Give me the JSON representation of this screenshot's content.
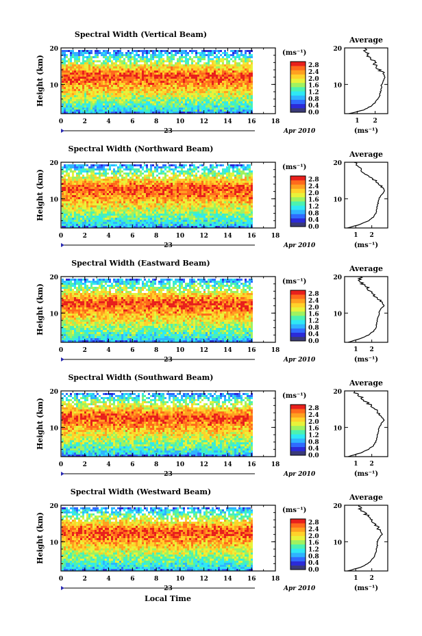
{
  "figure": {
    "xlabel": "Local Time",
    "date_label": "Apr 2010",
    "day_label": "23"
  },
  "colorbar": {
    "unit_label": "(ms⁻¹)",
    "tick_labels": [
      "0.0",
      "0.4",
      "0.8",
      "1.2",
      "1.6",
      "2.0",
      "2.4",
      "2.8"
    ],
    "colors": [
      "#3a3a78",
      "#2b2bd8",
      "#2f6bff",
      "#2fb4ff",
      "#2fe8f4",
      "#4cf2b0",
      "#9ff260",
      "#e8f23a",
      "#ffd22a",
      "#ffa020",
      "#ff6a1c",
      "#e8201c"
    ]
  },
  "chart_data": [
    {
      "type": "heatmap",
      "title": "Spectral Width (Vertical Beam)",
      "xlabel": "",
      "ylabel": "Height (km)",
      "xlim": [
        0,
        18
      ],
      "ylim": [
        2,
        20
      ],
      "x_ticks": [
        0,
        2,
        4,
        6,
        8,
        10,
        12,
        14,
        16,
        18
      ],
      "y_ticks": [
        10,
        20
      ],
      "data_end": 16,
      "band": {
        "low": 3,
        "peak": 12.5,
        "top": 17
      },
      "avg": {
        "title": "Average",
        "xlim": [
          0.3,
          2.7
        ],
        "x_ticks": [
          1,
          2
        ],
        "unit_label": "(ms⁻¹)",
        "heights": [
          2,
          3,
          4,
          5,
          6,
          7,
          8,
          9,
          10,
          11,
          12,
          13,
          14,
          15,
          16,
          17,
          18,
          19,
          20
        ],
        "values": [
          0.55,
          1.35,
          1.75,
          2.0,
          2.15,
          2.25,
          2.3,
          2.35,
          2.35,
          2.45,
          2.55,
          2.45,
          2.25,
          2.05,
          1.95,
          1.8,
          1.6,
          1.45,
          1.4
        ]
      }
    },
    {
      "type": "heatmap",
      "title": "Spectral Width (Northward Beam)",
      "xlabel": "",
      "ylabel": "Height (km)",
      "xlim": [
        0,
        18
      ],
      "ylim": [
        2,
        20
      ],
      "x_ticks": [
        0,
        2,
        4,
        6,
        8,
        10,
        12,
        14,
        16,
        18
      ],
      "y_ticks": [
        10,
        20
      ],
      "data_end": 16,
      "band": {
        "low": 3,
        "peak": 13,
        "top": 17.5
      },
      "avg": {
        "title": "Average",
        "xlim": [
          0.3,
          3.0
        ],
        "x_ticks": [
          1,
          2
        ],
        "unit_label": "(ms⁻¹)",
        "heights": [
          2,
          3,
          4,
          5,
          6,
          7,
          8,
          9,
          10,
          11,
          12,
          13,
          14,
          15,
          16,
          17,
          18,
          19,
          20
        ],
        "values": [
          0.5,
          1.3,
          1.8,
          2.1,
          2.25,
          2.3,
          2.35,
          2.4,
          2.45,
          2.6,
          2.8,
          2.7,
          2.5,
          2.2,
          1.9,
          1.6,
          1.3,
          1.1,
          0.9
        ]
      }
    },
    {
      "type": "heatmap",
      "title": "Spectral Width (Eastward Beam)",
      "xlabel": "",
      "ylabel": "Height (km)",
      "xlim": [
        0,
        18
      ],
      "ylim": [
        2,
        20
      ],
      "x_ticks": [
        0,
        2,
        4,
        6,
        8,
        10,
        12,
        14,
        16,
        18
      ],
      "y_ticks": [
        10,
        20
      ],
      "data_end": 16,
      "band": {
        "low": 3,
        "peak": 13,
        "top": 17.5
      },
      "avg": {
        "title": "Average",
        "xlim": [
          0.3,
          3.0
        ],
        "x_ticks": [
          1,
          2
        ],
        "unit_label": "(ms⁻¹)",
        "heights": [
          2,
          3,
          4,
          5,
          6,
          7,
          8,
          9,
          10,
          11,
          12,
          13,
          14,
          15,
          16,
          17,
          18,
          19,
          20
        ],
        "values": [
          0.5,
          1.3,
          1.8,
          2.1,
          2.25,
          2.3,
          2.35,
          2.4,
          2.45,
          2.55,
          2.75,
          2.65,
          2.4,
          2.1,
          1.9,
          1.7,
          1.4,
          1.2,
          1.3
        ]
      }
    },
    {
      "type": "heatmap",
      "title": "Spectral Width (Southward Beam)",
      "xlabel": "",
      "ylabel": "Height (km)",
      "xlim": [
        0,
        18
      ],
      "ylim": [
        2,
        20
      ],
      "x_ticks": [
        0,
        2,
        4,
        6,
        8,
        10,
        12,
        14,
        16,
        18
      ],
      "y_ticks": [
        10,
        20
      ],
      "data_end": 16,
      "band": {
        "low": 3,
        "peak": 13,
        "top": 17.5
      },
      "avg": {
        "title": "Average",
        "xlim": [
          0.3,
          3.0
        ],
        "x_ticks": [
          1,
          2
        ],
        "unit_label": "(ms⁻¹)",
        "heights": [
          2,
          3,
          4,
          5,
          6,
          7,
          8,
          9,
          10,
          11,
          12,
          13,
          14,
          15,
          16,
          17,
          18,
          19,
          20
        ],
        "values": [
          0.5,
          1.3,
          1.8,
          2.1,
          2.25,
          2.3,
          2.35,
          2.4,
          2.45,
          2.6,
          2.75,
          2.6,
          2.4,
          2.2,
          2.0,
          1.6,
          1.4,
          1.1,
          0.9
        ]
      }
    },
    {
      "type": "heatmap",
      "title": "Spectral Width (Westward Beam)",
      "xlabel": "Local Time",
      "ylabel": "Height (km)",
      "xlim": [
        0,
        18
      ],
      "ylim": [
        2,
        20
      ],
      "x_ticks": [
        0,
        2,
        4,
        6,
        8,
        10,
        12,
        14,
        16,
        18
      ],
      "y_ticks": [
        10,
        20
      ],
      "data_end": 16,
      "band": {
        "low": 3,
        "peak": 13,
        "top": 17.5
      },
      "avg": {
        "title": "Average",
        "xlim": [
          0.3,
          3.0
        ],
        "x_ticks": [
          1,
          2
        ],
        "unit_label": "(ms⁻¹)",
        "heights": [
          2,
          3,
          4,
          5,
          6,
          7,
          8,
          9,
          10,
          11,
          12,
          13,
          14,
          15,
          16,
          17,
          18,
          19,
          20
        ],
        "values": [
          0.5,
          1.3,
          1.75,
          2.0,
          2.15,
          2.25,
          2.3,
          2.35,
          2.35,
          2.45,
          2.65,
          2.55,
          2.35,
          2.15,
          1.95,
          1.75,
          1.55,
          1.3,
          1.2
        ]
      }
    }
  ]
}
